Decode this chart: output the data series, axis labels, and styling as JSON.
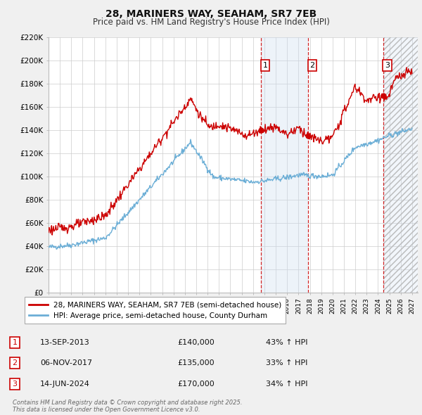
{
  "title": "28, MARINERS WAY, SEAHAM, SR7 7EB",
  "subtitle": "Price paid vs. HM Land Registry's House Price Index (HPI)",
  "xlim": [
    1995.0,
    2027.5
  ],
  "ylim": [
    0,
    220000
  ],
  "yticks": [
    0,
    20000,
    40000,
    60000,
    80000,
    100000,
    120000,
    140000,
    160000,
    180000,
    200000,
    220000
  ],
  "ytick_labels": [
    "£0",
    "£20K",
    "£40K",
    "£60K",
    "£80K",
    "£100K",
    "£120K",
    "£140K",
    "£160K",
    "£180K",
    "£200K",
    "£220K"
  ],
  "hpi_color": "#6baed6",
  "price_color": "#cc0000",
  "sale_marker_color": "#cc0000",
  "transaction_line_color": "#cc0000",
  "shaded_color": "#ccddf0",
  "hatch_color": "#cccccc",
  "transactions": [
    {
      "date": 2013.71,
      "price": 140000,
      "label": "1"
    },
    {
      "date": 2017.84,
      "price": 135000,
      "label": "2"
    },
    {
      "date": 2024.45,
      "price": 170000,
      "label": "3"
    }
  ],
  "legend_entries": [
    {
      "label": "28, MARINERS WAY, SEAHAM, SR7 7EB (semi-detached house)",
      "color": "#cc0000"
    },
    {
      "label": "HPI: Average price, semi-detached house, County Durham",
      "color": "#6baed6"
    }
  ],
  "table_rows": [
    {
      "num": "1",
      "date": "13-SEP-2013",
      "price": "£140,000",
      "hpi": "43% ↑ HPI"
    },
    {
      "num": "2",
      "date": "06-NOV-2017",
      "price": "£135,000",
      "hpi": "33% ↑ HPI"
    },
    {
      "num": "3",
      "date": "14-JUN-2024",
      "price": "£170,000",
      "hpi": "34% ↑ HPI"
    }
  ],
  "footer": "Contains HM Land Registry data © Crown copyright and database right 2025.\nThis data is licensed under the Open Government Licence v3.0.",
  "background_color": "#f0f0f0",
  "plot_bg_color": "#ffffff"
}
